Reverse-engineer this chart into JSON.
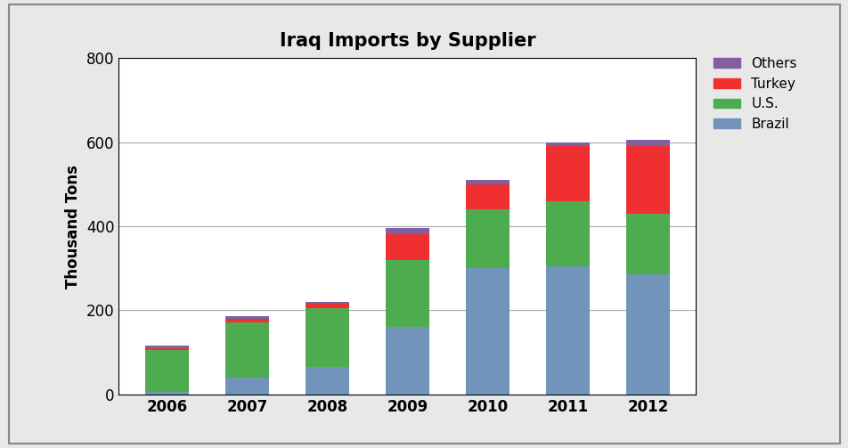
{
  "years": [
    "2006",
    "2007",
    "2008",
    "2009",
    "2010",
    "2011",
    "2012"
  ],
  "brazil": [
    5,
    40,
    65,
    160,
    300,
    305,
    285
  ],
  "us": [
    100,
    130,
    140,
    160,
    140,
    155,
    145
  ],
  "turkey": [
    5,
    10,
    10,
    60,
    60,
    130,
    160
  ],
  "others": [
    5,
    5,
    5,
    15,
    10,
    10,
    15
  ],
  "colors": {
    "brazil": "#7394ba",
    "us": "#4dac4d",
    "turkey": "#f03030",
    "others": "#8060a0"
  },
  "title": "Iraq Imports by Supplier",
  "ylabel": "Thousand Tons",
  "ylim": [
    0,
    800
  ],
  "yticks": [
    0,
    200,
    400,
    600,
    800
  ],
  "background_color": "#ffffff",
  "outer_background": "#e8e8e8",
  "bar_width": 0.55
}
